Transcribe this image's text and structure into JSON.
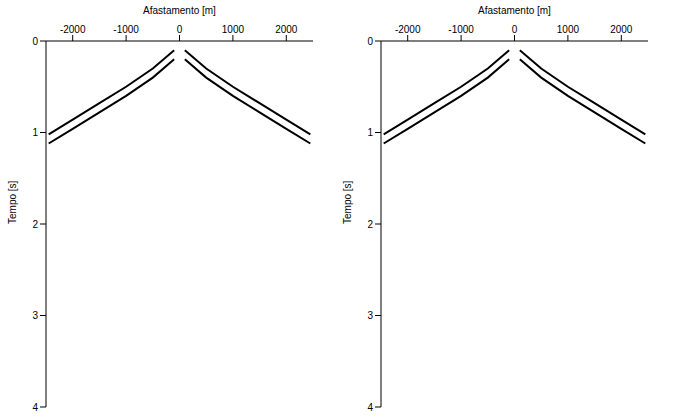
{
  "chart_data": [
    {
      "type": "line",
      "xlabel": "Afastamento [m]",
      "ylabel": "Tempo [s]",
      "x": [
        -2450,
        -2000,
        -1500,
        -1000,
        -500,
        -100,
        0,
        100,
        500,
        1000,
        1500,
        2000,
        2450
      ],
      "series": [
        {
          "color": "#000000",
          "values": [
            1.02,
            0.86,
            0.68,
            0.5,
            0.3,
            0.1,
            null,
            0.1,
            0.3,
            0.5,
            0.68,
            0.86,
            1.02
          ]
        },
        {
          "color": "#000000",
          "values": [
            1.12,
            0.96,
            0.78,
            0.6,
            0.4,
            0.2,
            null,
            0.2,
            0.4,
            0.6,
            0.78,
            0.96,
            1.12
          ]
        }
      ],
      "xlim": [
        -2500,
        2500
      ],
      "xticks": [
        -2000,
        -1000,
        0,
        1000,
        2000
      ],
      "ylim": [
        0,
        4
      ],
      "yticks": [
        0,
        1,
        2,
        3,
        4
      ],
      "grid": false
    },
    {
      "type": "line",
      "xlabel": "Afastamento [m]",
      "ylabel": "Tempo [s]",
      "x": [
        -2450,
        -2000,
        -1500,
        -1000,
        -500,
        -100,
        0,
        100,
        500,
        1000,
        1500,
        2000,
        2450
      ],
      "series": [
        {
          "color": "#000000",
          "values": [
            1.02,
            0.86,
            0.68,
            0.5,
            0.3,
            0.1,
            null,
            0.1,
            0.3,
            0.5,
            0.68,
            0.86,
            1.02
          ]
        },
        {
          "color": "#000000",
          "values": [
            1.12,
            0.96,
            0.78,
            0.6,
            0.4,
            0.2,
            null,
            0.2,
            0.4,
            0.6,
            0.78,
            0.96,
            1.12
          ]
        }
      ],
      "xlim": [
        -2500,
        2500
      ],
      "xticks": [
        -2000,
        -1000,
        0,
        1000,
        2000
      ],
      "ylim": [
        0,
        4
      ],
      "yticks": [
        0,
        1,
        2,
        3,
        4
      ],
      "grid": false
    }
  ]
}
